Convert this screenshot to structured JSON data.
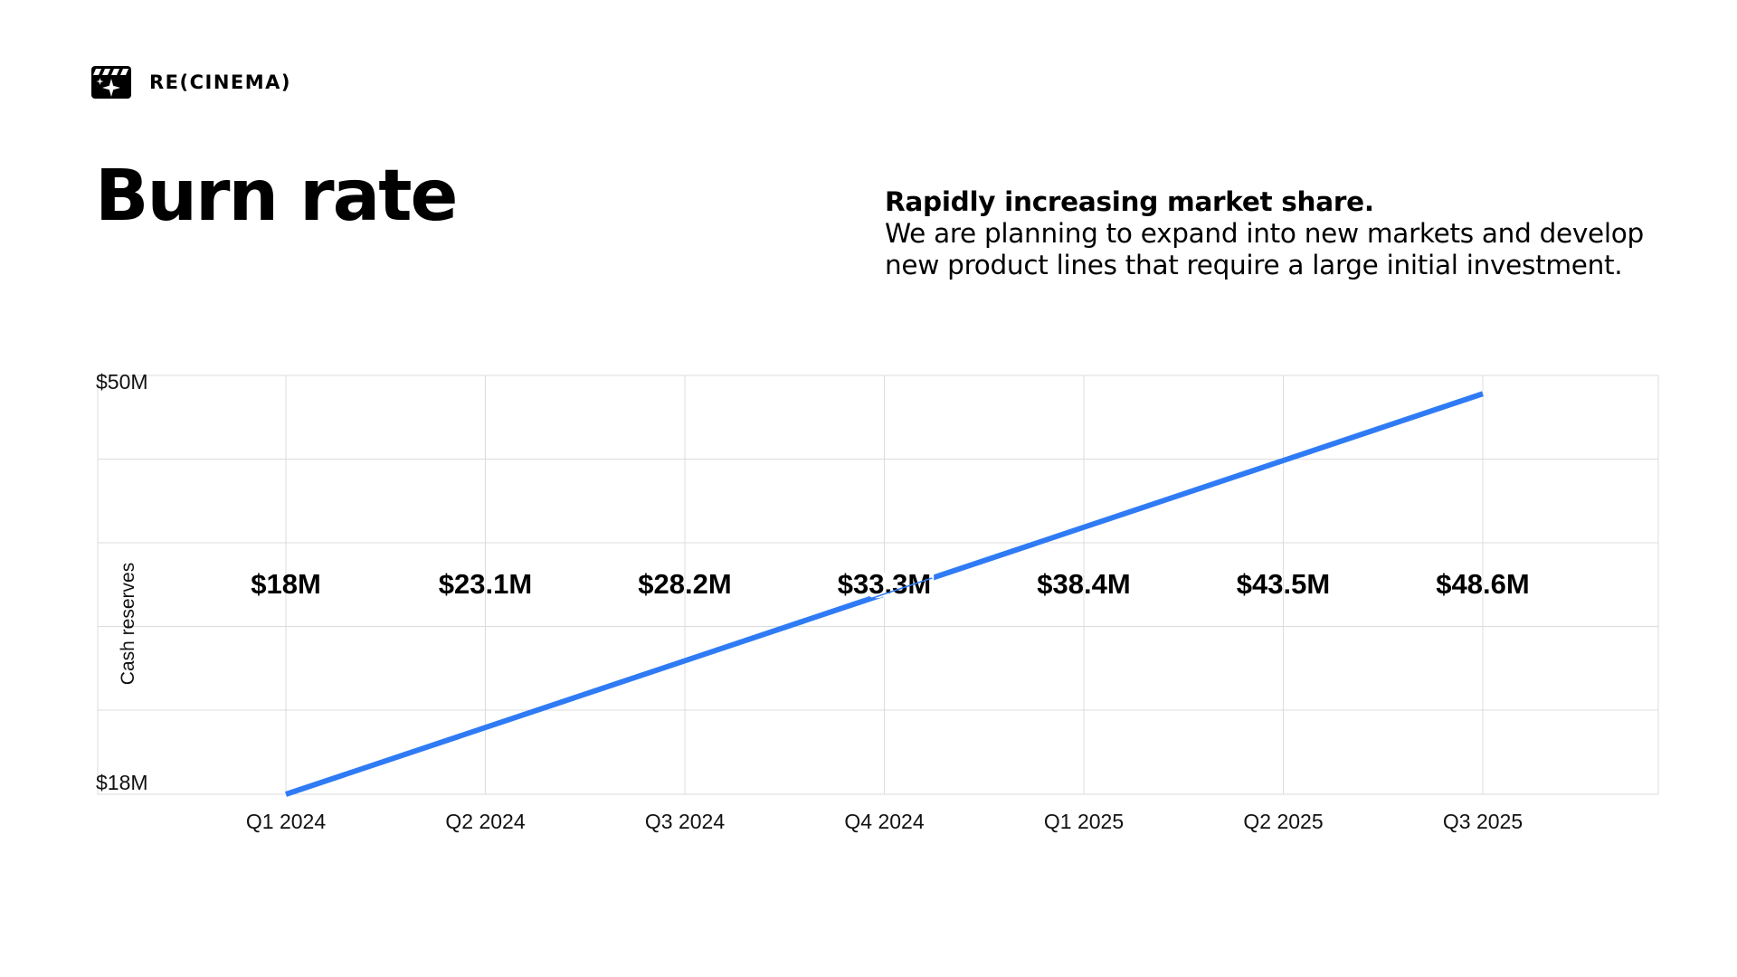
{
  "brand": {
    "name": "RE(CINEMA)",
    "icon": "clapperboard-sparkle-icon"
  },
  "title": "Burn rate",
  "description": {
    "headline": "Rapidly increasing market share.",
    "body": "We are planning to expand into new markets and develop new product lines that require a large initial investment."
  },
  "colors": {
    "line": "#2f7bf5",
    "grid": "#dcdcdc",
    "text": "#000000"
  },
  "chart_data": {
    "type": "line",
    "ylabel": "Cash reserves",
    "xlabel": "",
    "categories": [
      "Q1 2024",
      "Q2 2024",
      "Q3 2024",
      "Q4 2024",
      "Q1 2025",
      "Q2 2025",
      "Q3 2025"
    ],
    "values": [
      18,
      23.1,
      28.2,
      33.3,
      38.4,
      43.5,
      48.6
    ],
    "data_labels": [
      "$18M",
      "$23.1M",
      "$28.2M",
      "$33.3M",
      "$38.4M",
      "$43.5M",
      "$48.6M"
    ],
    "ylim": [
      18,
      50
    ],
    "y_tick_labels": [
      "$18M",
      "$50M"
    ],
    "grid": true
  }
}
